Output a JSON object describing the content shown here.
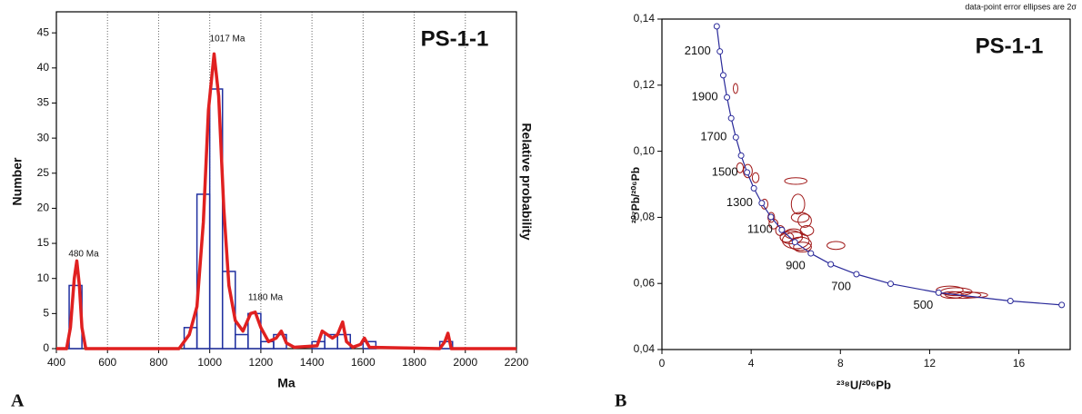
{
  "chart_data": [
    {
      "type": "histogram",
      "panel": "A",
      "title": "PS-1-1",
      "xlabel": "Ma",
      "ylabel": "Number",
      "y2label": "Relative probability",
      "annotations": [
        "480 Ma",
        "1017 Ma",
        "1180 Ma"
      ],
      "bins": [
        400,
        450,
        500,
        550,
        600,
        650,
        700,
        750,
        800,
        850,
        900,
        950,
        1000,
        1050,
        1100,
        1150,
        1200,
        1250,
        1300,
        1350,
        1400,
        1450,
        1500,
        1550,
        1600,
        1650,
        1700,
        1750,
        1800,
        1850,
        1900,
        1950,
        2000
      ],
      "values": [
        0,
        9,
        0,
        0,
        0,
        0,
        0,
        0,
        0,
        0,
        3,
        22,
        37,
        11,
        2,
        5,
        1,
        2,
        0,
        0,
        1,
        2,
        2,
        0,
        1,
        0,
        0,
        0,
        0,
        0,
        1,
        0
      ],
      "color": "#2030a0",
      "line": {
        "color": "#e02020",
        "x": [
          400,
          440,
          455,
          470,
          480,
          490,
          500,
          515,
          880,
          920,
          950,
          975,
          995,
          1017,
          1035,
          1055,
          1075,
          1100,
          1130,
          1160,
          1178,
          1200,
          1230,
          1260,
          1280,
          1300,
          1330,
          1420,
          1440,
          1460,
          1480,
          1500,
          1520,
          1535,
          1560,
          1590,
          1605,
          1625,
          1900,
          1920,
          1932,
          1945,
          2200
        ],
        "values": [
          0,
          0,
          3,
          10,
          12.5,
          9,
          3,
          0,
          0,
          2,
          6,
          18,
          34,
          42,
          36,
          20,
          9,
          4,
          2.5,
          5,
          5.2,
          3,
          1,
          1.5,
          2.5,
          0.8,
          0.2,
          0.4,
          2.5,
          2,
          1.5,
          2,
          3.8,
          1,
          0.2,
          0.6,
          1.5,
          0.2,
          0,
          1,
          2.2,
          0,
          0
        ]
      },
      "xlim": [
        400,
        2200
      ],
      "ylim": [
        0,
        48
      ],
      "xticks": [
        400,
        600,
        800,
        1000,
        1200,
        1400,
        1600,
        1800,
        2000,
        2200
      ],
      "yticks": [
        0,
        5,
        10,
        15,
        20,
        25,
        30,
        35,
        40,
        45
      ],
      "grid": "x"
    },
    {
      "type": "concordia",
      "panel": "B",
      "title": "PS-1-1",
      "note": "data-point error ellipses are 2σ",
      "xlabel": "²³⁸U/²⁰⁶Pb",
      "ylabel": "²⁰⁷Pb/²⁰⁶Pb",
      "xlim": [
        0,
        18.3
      ],
      "ylim": [
        0.04,
        0.14
      ],
      "xticks": [
        0,
        4,
        8,
        12,
        16
      ],
      "yticks": [
        {
          "value": 0.04,
          "label": "0,04"
        },
        {
          "value": 0.06,
          "label": "0,06"
        },
        {
          "value": 0.08,
          "label": "0,08"
        },
        {
          "value": 0.1,
          "label": "0,10"
        },
        {
          "value": 0.12,
          "label": "0,12"
        },
        {
          "value": 0.14,
          "label": "0,14"
        }
      ],
      "concordia": {
        "color": "#2a2a9a",
        "x": [
          2.458,
          2.597,
          2.749,
          2.917,
          3.105,
          3.314,
          3.55,
          3.817,
          4.122,
          4.476,
          4.888,
          5.375,
          5.96,
          6.675,
          7.568,
          8.72,
          10.25,
          12.4,
          15.62,
          17.92
        ],
        "y": [
          0.1378,
          0.1302,
          0.123,
          0.1163,
          0.11,
          0.1042,
          0.0987,
          0.0936,
          0.0888,
          0.0843,
          0.0801,
          0.0762,
          0.0725,
          0.0691,
          0.0658,
          0.0628,
          0.0599,
          0.0572,
          0.0547,
          0.0535
        ],
        "labels": [
          null,
          2100,
          null,
          1900,
          null,
          1700,
          null,
          1500,
          null,
          1300,
          null,
          1100,
          null,
          900,
          null,
          700,
          null,
          500,
          null,
          null
        ]
      },
      "ellipses": {
        "color": "#a01818",
        "x": [
          3.3,
          3.5,
          3.85,
          4.2,
          4.6,
          4.9,
          5.0,
          5.3,
          6.0,
          6.1,
          6.2,
          6.4,
          5.8,
          6.0,
          6.2,
          5.9,
          6.3,
          5.6,
          6.5,
          7.8,
          12.9,
          13.2,
          13.5,
          13.0,
          14.0
        ],
        "y": [
          0.119,
          0.095,
          0.094,
          0.092,
          0.084,
          0.08,
          0.078,
          0.076,
          0.091,
          0.084,
          0.08,
          0.079,
          0.074,
          0.073,
          0.072,
          0.075,
          0.071,
          0.074,
          0.076,
          0.0715,
          0.058,
          0.0575,
          0.0565,
          0.0565,
          0.0565
        ],
        "x_err": [
          0.1,
          0.15,
          0.2,
          0.15,
          0.15,
          0.15,
          0.2,
          0.2,
          0.5,
          0.3,
          0.4,
          0.3,
          0.5,
          0.6,
          0.5,
          0.4,
          0.4,
          0.3,
          0.3,
          0.4,
          0.6,
          0.7,
          0.8,
          0.5,
          0.6
        ],
        "y_err": [
          0.0015,
          0.0015,
          0.002,
          0.0015,
          0.0015,
          0.0015,
          0.0015,
          0.0015,
          0.001,
          0.003,
          0.0015,
          0.002,
          0.002,
          0.0025,
          0.002,
          0.0015,
          0.0015,
          0.0015,
          0.0015,
          0.0012,
          0.0012,
          0.0012,
          0.001,
          0.001,
          0.0008
        ]
      }
    }
  ]
}
